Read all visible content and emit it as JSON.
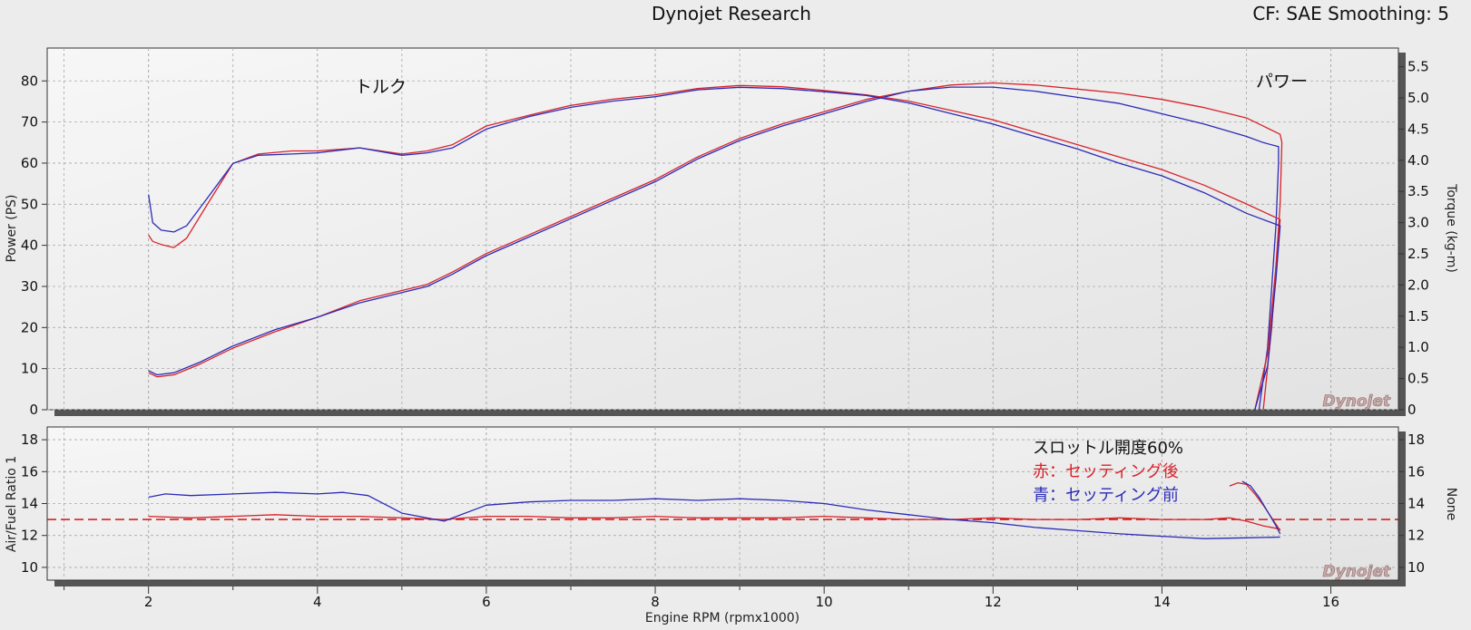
{
  "header": {
    "title": "Dynojet Research",
    "cf_text": "CF: SAE Smoothing: 5"
  },
  "logo_text": "Dynojet",
  "colors": {
    "after": "#d8232a",
    "before": "#2b2bb8",
    "reference": "#cc0000",
    "grid": "#a8a8a8",
    "plot_bg": "#f2f2f2"
  },
  "chart_data": [
    {
      "type": "line",
      "title": "Dynojet Research",
      "ylabel": "Power (PS)",
      "y2label": "Torque (kg-m)",
      "xlabel": "Engine RPM (rpmx1000)",
      "xlim": [
        0.8,
        16.8
      ],
      "ylim": [
        0,
        88
      ],
      "y2lim": [
        0,
        5.8
      ],
      "x_ticks": [
        2,
        4,
        6,
        8,
        10,
        12,
        14,
        16
      ],
      "y_ticks": [
        0,
        10,
        20,
        30,
        40,
        50,
        60,
        70,
        80
      ],
      "y2_ticks": [
        "0",
        "0.5",
        "1.0",
        "1.5",
        "2.0",
        "2.5",
        "3.0",
        "3.5",
        "4.0",
        "4.5",
        "5.0",
        "5.5"
      ],
      "annotations": {
        "torque_label": "トルク",
        "power_label": "パワー"
      },
      "series": [
        {
          "name": "Power after setting",
          "color": "after",
          "axis": "left",
          "x": [
            2.0,
            2.1,
            2.3,
            2.6,
            3.0,
            3.5,
            4.0,
            4.5,
            5.0,
            5.3,
            5.6,
            6.0,
            6.5,
            7.0,
            7.5,
            8.0,
            8.5,
            9.0,
            9.5,
            10.0,
            10.5,
            11.0,
            11.5,
            12.0,
            12.5,
            13.0,
            13.5,
            14.0,
            14.5,
            15.0,
            15.2,
            15.4,
            15.42,
            15.4,
            15.3,
            15.2
          ],
          "y": [
            9,
            8,
            8.5,
            11,
            15,
            19,
            22.5,
            26.5,
            29,
            30.5,
            33.5,
            38,
            42.5,
            47,
            51.5,
            56,
            61.5,
            66,
            69.5,
            72.5,
            75.5,
            77.5,
            79,
            79.5,
            79,
            78,
            77,
            75.5,
            73.5,
            71,
            69,
            67,
            65,
            50,
            20,
            0
          ]
        },
        {
          "name": "Power before setting",
          "color": "before",
          "axis": "left",
          "x": [
            2.0,
            2.1,
            2.3,
            2.6,
            3.0,
            3.5,
            4.0,
            4.5,
            5.0,
            5.3,
            5.6,
            6.0,
            6.5,
            7.0,
            7.5,
            8.0,
            8.5,
            9.0,
            9.5,
            10.0,
            10.5,
            11.0,
            11.5,
            12.0,
            12.5,
            13.0,
            13.5,
            14.0,
            14.5,
            15.0,
            15.2,
            15.38,
            15.38,
            15.35,
            15.25,
            15.15
          ],
          "y": [
            9.5,
            8.5,
            9,
            11.5,
            15.5,
            19.5,
            22.5,
            26,
            28.5,
            30,
            33,
            37.5,
            42,
            46.5,
            51,
            55.5,
            61,
            65.5,
            69,
            72,
            75,
            77.5,
            78.5,
            78.5,
            77.5,
            76,
            74.5,
            72,
            69.5,
            66.5,
            65,
            64,
            60,
            45,
            15,
            0
          ]
        },
        {
          "name": "Torque after setting",
          "color": "after",
          "axis": "right",
          "x": [
            2.0,
            2.05,
            2.15,
            2.3,
            2.45,
            2.7,
            3.0,
            3.3,
            3.7,
            4.0,
            4.5,
            5.0,
            5.3,
            5.6,
            6.0,
            6.5,
            7.0,
            7.5,
            8.0,
            8.5,
            9.0,
            9.5,
            10.0,
            10.5,
            11.0,
            11.5,
            12.0,
            12.5,
            13.0,
            13.5,
            14.0,
            14.5,
            15.0,
            15.4,
            15.35,
            15.25,
            15.1
          ],
          "y": [
            2.8,
            2.7,
            2.65,
            2.6,
            2.75,
            3.3,
            3.95,
            4.1,
            4.15,
            4.15,
            4.2,
            4.1,
            4.15,
            4.25,
            4.55,
            4.72,
            4.88,
            4.98,
            5.05,
            5.15,
            5.2,
            5.18,
            5.12,
            5.05,
            4.95,
            4.8,
            4.65,
            4.45,
            4.25,
            4.05,
            3.85,
            3.6,
            3.3,
            3.05,
            2.3,
            0.9,
            0
          ]
        },
        {
          "name": "Torque before setting",
          "color": "before",
          "axis": "right",
          "x": [
            2.0,
            2.05,
            2.15,
            2.3,
            2.45,
            2.7,
            3.0,
            3.3,
            3.7,
            4.0,
            4.5,
            5.0,
            5.3,
            5.6,
            6.0,
            6.5,
            7.0,
            7.5,
            8.0,
            8.5,
            9.0,
            9.5,
            10.0,
            10.5,
            11.0,
            11.5,
            12.0,
            12.5,
            13.0,
            13.5,
            14.0,
            14.5,
            15.0,
            15.4,
            15.35,
            15.25,
            15.1
          ],
          "y": [
            3.45,
            3.0,
            2.88,
            2.85,
            2.95,
            3.4,
            3.95,
            4.08,
            4.1,
            4.12,
            4.2,
            4.08,
            4.12,
            4.2,
            4.5,
            4.7,
            4.85,
            4.95,
            5.02,
            5.13,
            5.17,
            5.15,
            5.1,
            5.04,
            4.92,
            4.75,
            4.58,
            4.38,
            4.18,
            3.95,
            3.75,
            3.48,
            3.15,
            2.95,
            2.1,
            0.7,
            0
          ]
        }
      ]
    },
    {
      "type": "line",
      "ylabel": "Air/Fuel Ratio 1",
      "y2label": "None",
      "xlabel": "Engine RPM (rpmx1000)",
      "xlim": [
        0.8,
        16.8
      ],
      "ylim": [
        9.2,
        18.8
      ],
      "y_ticks": [
        10,
        12,
        14,
        16,
        18
      ],
      "reference_line": 13.0,
      "legend": {
        "title": "スロットル開度60%",
        "after_label": "赤：セッティング後",
        "before_label": "青：セッティング前"
      },
      "series": [
        {
          "name": "AFR after setting",
          "color": "after",
          "x": [
            2.0,
            2.5,
            3.0,
            3.5,
            4.0,
            4.5,
            5.0,
            5.5,
            6.0,
            6.5,
            7.0,
            7.5,
            8.0,
            8.5,
            9.0,
            9.5,
            10.0,
            10.5,
            11.0,
            11.5,
            12.0,
            12.5,
            13.0,
            13.5,
            14.0,
            14.5,
            14.8,
            15.0,
            15.2,
            15.4
          ],
          "y": [
            13.2,
            13.1,
            13.2,
            13.3,
            13.2,
            13.2,
            13.1,
            13.0,
            13.2,
            13.2,
            13.1,
            13.1,
            13.2,
            13.1,
            13.1,
            13.1,
            13.2,
            13.1,
            13.0,
            13.0,
            13.1,
            13.0,
            13.0,
            13.1,
            13.0,
            13.0,
            13.1,
            12.9,
            12.6,
            12.4
          ]
        },
        {
          "name": "AFR before setting",
          "color": "before",
          "x": [
            2.0,
            2.2,
            2.5,
            3.0,
            3.5,
            4.0,
            4.3,
            4.6,
            5.0,
            5.5,
            6.0,
            6.5,
            7.0,
            7.5,
            8.0,
            8.5,
            9.0,
            9.5,
            10.0,
            10.5,
            11.0,
            11.5,
            12.0,
            12.5,
            13.0,
            13.5,
            14.0,
            14.5,
            15.0,
            15.4
          ],
          "y": [
            14.4,
            14.6,
            14.5,
            14.6,
            14.7,
            14.6,
            14.7,
            14.5,
            13.4,
            12.9,
            13.9,
            14.1,
            14.2,
            14.2,
            14.3,
            14.2,
            14.3,
            14.2,
            14.0,
            13.6,
            13.3,
            13.0,
            12.8,
            12.5,
            12.3,
            12.1,
            11.95,
            11.8,
            11.85,
            11.9
          ]
        },
        {
          "name": "AFR after setting (high rpm)",
          "color": "after",
          "x": [
            14.8,
            14.9,
            15.0,
            15.1,
            15.2,
            15.3,
            15.4
          ],
          "y": [
            15.1,
            15.3,
            15.2,
            14.6,
            13.9,
            13.1,
            12.3
          ]
        },
        {
          "name": "AFR before setting (high rpm)",
          "color": "before",
          "x": [
            14.95,
            15.05,
            15.15,
            15.25,
            15.35,
            15.4
          ],
          "y": [
            15.4,
            15.1,
            14.4,
            13.5,
            12.6,
            12.1
          ]
        }
      ]
    }
  ]
}
